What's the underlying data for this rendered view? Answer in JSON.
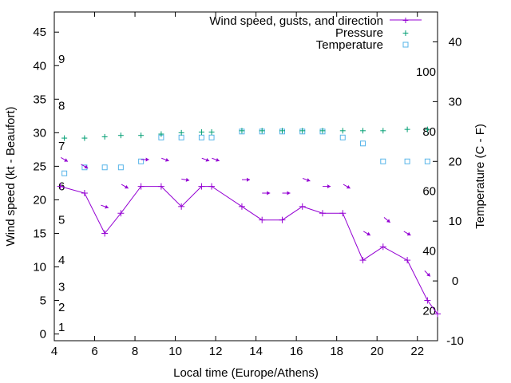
{
  "chart_data": {
    "type": "line",
    "xlabel": "Local time (Europe/Athens)",
    "ylabel": "Wind speed (kt - Beaufort)",
    "y2label": "Temperature (C - F)",
    "xlim": [
      4,
      23
    ],
    "ylim": [
      -1,
      48
    ],
    "y2lim": [
      -10,
      45
    ],
    "pressure_axis_lim": [
      10,
      120
    ],
    "xticks": [
      4,
      6,
      8,
      10,
      12,
      14,
      16,
      18,
      20,
      22
    ],
    "yticks": [
      0,
      5,
      10,
      15,
      20,
      25,
      30,
      35,
      40,
      45
    ],
    "y2ticks": [
      -10,
      0,
      10,
      20,
      30,
      40
    ],
    "beaufort_labels": [
      {
        "text": "1",
        "y": 1
      },
      {
        "text": "2",
        "y": 4
      },
      {
        "text": "3",
        "y": 7
      },
      {
        "text": "4",
        "y": 11
      },
      {
        "text": "5",
        "y": 17
      },
      {
        "text": "6",
        "y": 22
      },
      {
        "text": "7",
        "y": 28
      },
      {
        "text": "8",
        "y": 34
      },
      {
        "text": "9",
        "y": 41
      }
    ],
    "pressure_labels": [
      {
        "text": "20",
        "y": 20
      },
      {
        "text": "40",
        "y": 40
      },
      {
        "text": "60",
        "y": 60
      },
      {
        "text": "80",
        "y": 80
      },
      {
        "text": "100",
        "y": 100
      }
    ],
    "legend": [
      "Wind speed, gusts, and direction",
      "Pressure",
      "Temperature"
    ],
    "legend_position": "top-right",
    "colors": {
      "wind": "#9400d3",
      "pressure": "#009e73",
      "temperature": "#56b4e9"
    },
    "series": [
      {
        "name": "Wind speed, gusts, and direction",
        "x": [
          4.3,
          5.5,
          6.5,
          7.3,
          8.3,
          9.3,
          10.3,
          11.3,
          11.8,
          13.3,
          14.3,
          15.3,
          16.3,
          17.3,
          18.3,
          19.3,
          20.3,
          21.5,
          22.5,
          23
        ],
        "y": [
          22,
          21,
          15,
          18,
          22,
          22,
          19,
          22,
          22,
          19,
          17,
          17,
          19,
          18,
          18,
          11,
          13,
          11,
          5,
          3
        ]
      },
      {
        "name": "Direction arrows",
        "x": [
          4.5,
          5.5,
          6.5,
          7.5,
          8.5,
          9.5,
          10.5,
          11.5,
          12,
          13.5,
          14.5,
          15.5,
          16.5,
          17.5,
          18.5,
          19.5,
          20.5,
          21.5,
          22.5
        ],
        "y": [
          26,
          25,
          19,
          22,
          26,
          26,
          23,
          26,
          26,
          23,
          21,
          21,
          23,
          22,
          22,
          15,
          17,
          15,
          9
        ],
        "angle_deg": [
          30,
          30,
          20,
          30,
          0,
          20,
          10,
          20,
          20,
          0,
          0,
          0,
          20,
          0,
          30,
          30,
          40,
          30,
          45
        ]
      },
      {
        "name": "Pressure",
        "x": [
          4.5,
          5.5,
          6.5,
          7.3,
          8.3,
          9.3,
          10.3,
          11.3,
          11.8,
          13.3,
          14.3,
          15.3,
          16.3,
          17.3,
          18.3,
          19.3,
          20.3,
          21.5,
          22.5
        ],
        "y": [
          29.2,
          29.2,
          29.4,
          29.6,
          29.6,
          29.8,
          30.0,
          30.1,
          30.1,
          30.3,
          30.3,
          30.3,
          30.3,
          30.3,
          30.3,
          30.3,
          30.3,
          30.5,
          30.5
        ]
      },
      {
        "name": "Temperature",
        "x": [
          4.5,
          5.5,
          6.5,
          7.3,
          8.3,
          9.3,
          10.3,
          11.3,
          11.8,
          13.3,
          14.3,
          15.3,
          16.3,
          17.3,
          18.3,
          19.3,
          20.3,
          21.5,
          22.5
        ],
        "y": [
          18,
          19,
          19,
          19,
          20,
          24,
          24,
          24,
          24,
          25,
          25,
          25,
          25,
          25,
          24,
          23,
          20,
          20,
          20
        ]
      }
    ]
  }
}
